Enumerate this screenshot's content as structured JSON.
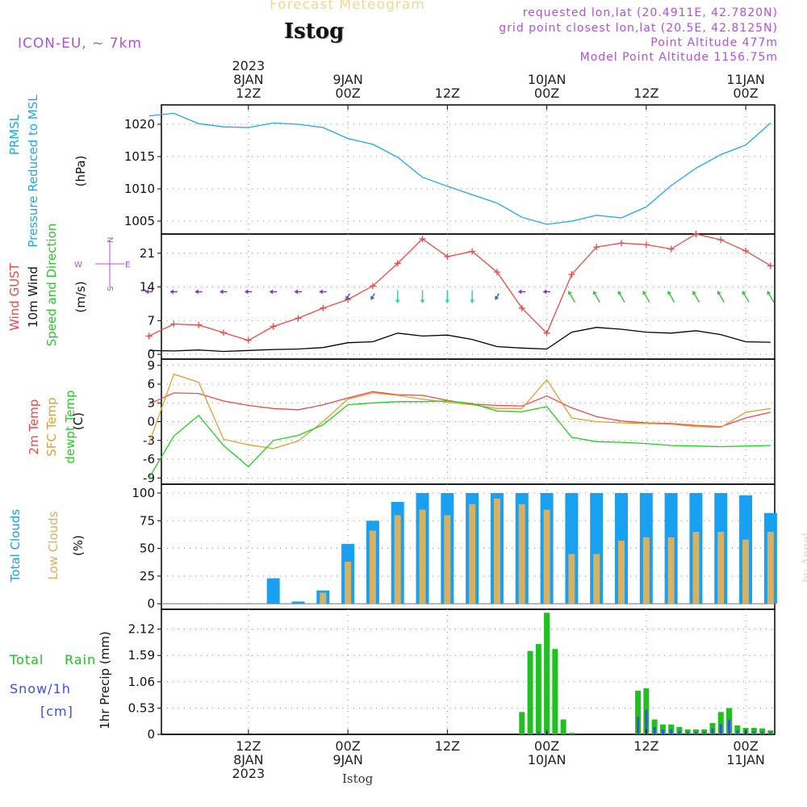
{
  "header": {
    "title": "Forecast Meteogram",
    "station": "Istog",
    "model": "ICON-EU, ~ 7km",
    "requested": "requested lon,lat (20.4911E, 42.7820N)",
    "grid_point": "grid point closest lon,lat (20.5E, 42.8125N)",
    "point_altitude": "Point Altitude 477m",
    "model_altitude": "Model Point Altitude 1156.75m"
  },
  "footer": {
    "station": "Istog",
    "watermark": "by Angel"
  },
  "colors": {
    "pressure": "#1ba8f0",
    "gust": "#f04848",
    "wind": "#000000",
    "dir_green": "#30c030",
    "t2m": "#f04848",
    "sfc": "#e0a030",
    "dew": "#20d020",
    "total_clouds": "#1aa0f0",
    "low_clouds": "#d8b060",
    "rain": "#20c020",
    "snow": "#3a50e0"
  },
  "labels": {
    "p1": {
      "a": "PRMSL",
      "b": "Pressure Reduced to MSL",
      "unit": "(hPa)"
    },
    "p2": {
      "a": "Wind GUST",
      "b": "10m Wind",
      "c": "Speed and Direction",
      "unit": "(m/s)"
    },
    "p3": {
      "a": "2m Temp",
      "b": "SFC Temp",
      "c": "dewpt Temp",
      "unit": "(C)"
    },
    "p4": {
      "a": "Total Clouds",
      "b": "Low Clouds",
      "unit": "(%)"
    },
    "p5": {
      "total": "Total",
      "rain": "Rain",
      "snow": "Snow/1h",
      "cm": "[cm]",
      "unit": "1hr Precip (mm)"
    },
    "compass": {
      "n": "N",
      "s": "S",
      "w": "W",
      "e": "E"
    }
  },
  "chart_data": [
    {
      "type": "line",
      "title": "PRMSL Pressure Reduced to MSL",
      "ylabel": "(hPa)",
      "ylim": [
        1003,
        1023
      ],
      "yticks": [
        1005,
        1010,
        1015,
        1020
      ],
      "x_hours": [
        0,
        3,
        6,
        9,
        12,
        15,
        18,
        21,
        24,
        27,
        30,
        33,
        36,
        39,
        42,
        45,
        48,
        51,
        54,
        57,
        60,
        63,
        66,
        69,
        72,
        75
      ],
      "series": [
        {
          "name": "PRMSL",
          "values": [
            1021.3,
            1021.7,
            1020.1,
            1019.6,
            1019.5,
            1020.2,
            1020.0,
            1019.5,
            1017.8,
            1016.9,
            1014.9,
            1011.8,
            1010.4,
            1009.1,
            1007.8,
            1005.6,
            1004.5,
            1005.0,
            1005.9,
            1005.5,
            1007.2,
            1010.5,
            1013.2,
            1015.3,
            1016.8,
            1020.2
          ]
        }
      ]
    },
    {
      "type": "line",
      "title": "Wind GUST / 10m Wind Speed and Direction",
      "ylabel": "(m/s)",
      "ylim": [
        -1,
        25
      ],
      "yticks": [
        0,
        7,
        14,
        21
      ],
      "x_hours": [
        0,
        3,
        6,
        9,
        12,
        15,
        18,
        21,
        24,
        27,
        30,
        33,
        36,
        39,
        42,
        45,
        48,
        51,
        54,
        57,
        60,
        63,
        66,
        69,
        72,
        75
      ],
      "series": [
        {
          "name": "Wind GUST",
          "values": [
            3.8,
            6.3,
            6.1,
            4.5,
            2.9,
            5.8,
            7.5,
            9.6,
            11.4,
            14.2,
            18.9,
            24.0,
            20.3,
            21.4,
            17.1,
            9.6,
            4.4,
            16.6,
            22.3,
            23.1,
            22.8,
            21.9,
            25.0,
            23.8,
            21.5,
            18.4
          ]
        },
        {
          "name": "10m Wind",
          "values": [
            0.8,
            0.7,
            0.9,
            0.6,
            0.8,
            1.0,
            1.1,
            1.4,
            2.4,
            2.6,
            4.4,
            3.8,
            4.0,
            3.1,
            1.6,
            1.3,
            1.1,
            4.6,
            5.6,
            5.2,
            4.6,
            4.4,
            4.9,
            4.1,
            2.6,
            2.5
          ]
        }
      ],
      "wind_direction_band": {
        "level": 13,
        "sectors": [
          "W",
          "W",
          "W",
          "W",
          "W",
          "W",
          "W",
          "W",
          "SW",
          "SW",
          "S",
          "S",
          "S",
          "S",
          "SW",
          "W",
          "W",
          "NW",
          "NW",
          "NW",
          "NW",
          "NW",
          "NW",
          "NW",
          "NW",
          "NW"
        ]
      }
    },
    {
      "type": "line",
      "title": "2m Temp / SFC Temp / dewpt Temp",
      "ylabel": "(C)",
      "ylim": [
        -10,
        10
      ],
      "yticks": [
        -9,
        -6,
        -3,
        0,
        3,
        6,
        9
      ],
      "x_hours": [
        0,
        3,
        6,
        9,
        12,
        15,
        18,
        21,
        24,
        27,
        30,
        33,
        36,
        39,
        42,
        45,
        48,
        51,
        54,
        57,
        60,
        63,
        66,
        69,
        72,
        75
      ],
      "series": [
        {
          "name": "2m Temp",
          "values": [
            2.8,
            4.6,
            4.5,
            3.3,
            2.6,
            2.1,
            1.9,
            2.7,
            3.8,
            4.8,
            4.3,
            4.2,
            3.4,
            2.8,
            2.6,
            2.5,
            4.1,
            2.2,
            0.8,
            0.1,
            -0.2,
            -0.3,
            -0.6,
            -0.8,
            0.6,
            1.5
          ]
        },
        {
          "name": "SFC Temp",
          "values": [
            -3.5,
            7.6,
            6.3,
            -2.8,
            -3.7,
            -4.3,
            -3.1,
            0.0,
            3.6,
            4.6,
            4.2,
            3.6,
            3.1,
            2.7,
            2.1,
            2.1,
            6.7,
            0.6,
            0.0,
            -0.2,
            -0.3,
            -0.4,
            -0.8,
            -0.9,
            1.5,
            2.1
          ]
        },
        {
          "name": "dewpt Temp",
          "values": [
            -9.0,
            -2.3,
            1.0,
            -3.8,
            -7.2,
            -3.0,
            -2.2,
            -0.5,
            2.7,
            3.0,
            3.2,
            3.2,
            3.3,
            2.9,
            1.7,
            1.6,
            2.4,
            -2.5,
            -3.2,
            -3.3,
            -3.5,
            -3.8,
            -3.9,
            -4.0,
            -3.9,
            -3.8
          ]
        }
      ]
    },
    {
      "type": "bar",
      "title": "Total Clouds / Low Clouds",
      "ylabel": "(%)",
      "ylim": [
        -5,
        108
      ],
      "yticks": [
        0,
        25,
        50,
        75,
        100
      ],
      "x_hours": [
        0,
        3,
        6,
        9,
        12,
        15,
        18,
        21,
        24,
        27,
        30,
        33,
        36,
        39,
        42,
        45,
        48,
        51,
        54,
        57,
        60,
        63,
        66,
        69,
        72,
        75
      ],
      "series": [
        {
          "name": "Total Clouds",
          "values": [
            0,
            0,
            0,
            0,
            0,
            23,
            2,
            12,
            54,
            75,
            92,
            100,
            100,
            100,
            100,
            100,
            100,
            100,
            100,
            100,
            100,
            100,
            100,
            100,
            98,
            82
          ]
        },
        {
          "name": "Low Clouds",
          "values": [
            0,
            0,
            0,
            0,
            0,
            0,
            0,
            10,
            38,
            66,
            80,
            85,
            80,
            90,
            95,
            90,
            85,
            45,
            45,
            57,
            60,
            60,
            65,
            65,
            58,
            65
          ]
        }
      ]
    },
    {
      "type": "bar",
      "title": "Total Rain / Snow 1hr Precip",
      "ylabel": "1hr Precip (mm)",
      "ylim": [
        0,
        2.52
      ],
      "yticks": [
        0,
        0.53,
        1.06,
        1.59,
        2.12
      ],
      "x_hours": [
        45,
        46,
        47,
        48,
        49,
        50,
        51,
        59,
        60,
        61,
        62,
        63,
        64,
        65,
        66,
        67,
        68,
        69,
        70,
        71,
        72,
        73,
        74,
        75
      ],
      "series": [
        {
          "name": "Total Rain",
          "values": [
            0.45,
            1.68,
            1.82,
            2.45,
            1.72,
            0.3,
            0.03,
            0.88,
            0.93,
            0.3,
            0.2,
            0.2,
            0.15,
            0.1,
            0.1,
            0.1,
            0.23,
            0.45,
            0.53,
            0.18,
            0.13,
            0.13,
            0.12,
            0.08
          ]
        },
        {
          "name": "Snow/1h",
          "values": [
            0,
            0,
            0.05,
            0.05,
            0,
            0,
            0,
            0.35,
            0.5,
            0.15,
            0.1,
            0.1,
            0.07,
            0.05,
            0.05,
            0.05,
            0.12,
            0.2,
            0.3,
            0.08,
            0.06,
            0.06,
            0.05,
            0.04
          ]
        }
      ]
    }
  ],
  "axis": {
    "top": [
      {
        "hour": 12,
        "lines": [
          "2023",
          "8JAN",
          "12Z"
        ]
      },
      {
        "hour": 24,
        "lines": [
          "9JAN",
          "00Z"
        ]
      },
      {
        "hour": 36,
        "lines": [
          "12Z"
        ]
      },
      {
        "hour": 48,
        "lines": [
          "10JAN",
          "00Z"
        ]
      },
      {
        "hour": 60,
        "lines": [
          "12Z"
        ]
      },
      {
        "hour": 72,
        "lines": [
          "11JAN",
          "00Z"
        ]
      }
    ],
    "bottom": [
      {
        "hour": 12,
        "lines": [
          "12Z",
          "8JAN",
          "2023"
        ]
      },
      {
        "hour": 24,
        "lines": [
          "00Z",
          "9JAN"
        ]
      },
      {
        "hour": 36,
        "lines": [
          "12Z"
        ]
      },
      {
        "hour": 48,
        "lines": [
          "00Z",
          "10JAN"
        ]
      },
      {
        "hour": 60,
        "lines": [
          "12Z"
        ]
      },
      {
        "hour": 72,
        "lines": [
          "00Z",
          "11JAN"
        ]
      }
    ]
  }
}
